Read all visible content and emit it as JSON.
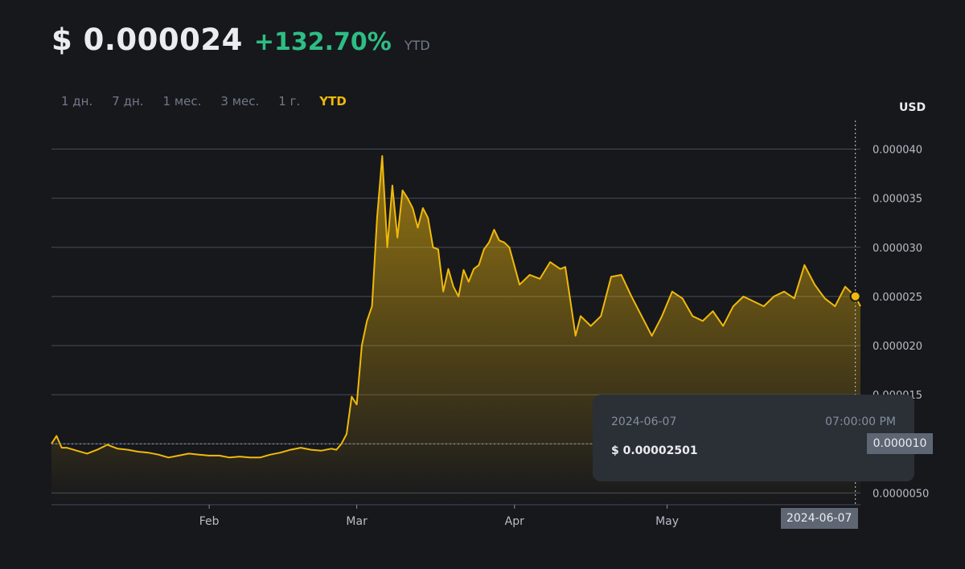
{
  "header": {
    "price": "$ 0.000024",
    "change": "+132.70%",
    "period": "YTD"
  },
  "tabs": [
    {
      "label": "1 дн.",
      "active": false
    },
    {
      "label": "7 дн.",
      "active": false
    },
    {
      "label": "1 мес.",
      "active": false
    },
    {
      "label": "3 мес.",
      "active": false
    },
    {
      "label": "1 г.",
      "active": false
    },
    {
      "label": "YTD",
      "active": true
    }
  ],
  "colors": {
    "accent": "#f0b90b",
    "positive": "#2ebd85",
    "background": "#17181c",
    "grid": "#474d57",
    "tooltip_bg": "#2b2f36"
  },
  "tooltip": {
    "date": "2024-06-07",
    "time": "07:00:00 PM",
    "price": "$ 0.00002501"
  },
  "crosshair": {
    "x_label": "2024-06-07",
    "y_label": "0.000010"
  },
  "chart_data": {
    "type": "area",
    "ylabel": "USD",
    "ylim": [
      3.8e-06,
      4.25e-05
    ],
    "yticks": [
      "0.000040",
      "0.000035",
      "0.000030",
      "0.000025",
      "0.000020",
      "0.000015",
      "0.000010",
      "0.0000050"
    ],
    "ytick_values": [
      4e-05,
      3.5e-05,
      3e-05,
      2.5e-05,
      2e-05,
      1.5e-05,
      1e-05,
      5e-06
    ],
    "xlim": [
      "2024-01-01",
      "2024-06-08"
    ],
    "xticks": [
      {
        "label": "Feb",
        "date": "2024-02-01"
      },
      {
        "label": "Mar",
        "date": "2024-03-01"
      },
      {
        "label": "Apr",
        "date": "2024-04-01"
      },
      {
        "label": "May",
        "date": "2024-05-01"
      }
    ],
    "baseline": 1e-05,
    "grid": true,
    "series": [
      {
        "points": [
          [
            "2024-01-01",
            1e-05
          ],
          [
            "2024-01-02",
            1.08e-05
          ],
          [
            "2024-01-03",
            9.6e-06
          ],
          [
            "2024-01-04",
            9.6e-06
          ],
          [
            "2024-01-06",
            9.3e-06
          ],
          [
            "2024-01-08",
            9e-06
          ],
          [
            "2024-01-10",
            9.4e-06
          ],
          [
            "2024-01-12",
            9.9e-06
          ],
          [
            "2024-01-14",
            9.5e-06
          ],
          [
            "2024-01-16",
            9.4e-06
          ],
          [
            "2024-01-18",
            9.2e-06
          ],
          [
            "2024-01-20",
            9.1e-06
          ],
          [
            "2024-01-22",
            8.9e-06
          ],
          [
            "2024-01-24",
            8.6e-06
          ],
          [
            "2024-01-26",
            8.8e-06
          ],
          [
            "2024-01-28",
            9e-06
          ],
          [
            "2024-01-30",
            8.9e-06
          ],
          [
            "2024-02-01",
            8.8e-06
          ],
          [
            "2024-02-03",
            8.8e-06
          ],
          [
            "2024-02-05",
            8.6e-06
          ],
          [
            "2024-02-07",
            8.7e-06
          ],
          [
            "2024-02-09",
            8.6e-06
          ],
          [
            "2024-02-11",
            8.6e-06
          ],
          [
            "2024-02-13",
            8.9e-06
          ],
          [
            "2024-02-15",
            9.1e-06
          ],
          [
            "2024-02-17",
            9.4e-06
          ],
          [
            "2024-02-19",
            9.6e-06
          ],
          [
            "2024-02-21",
            9.4e-06
          ],
          [
            "2024-02-23",
            9.3e-06
          ],
          [
            "2024-02-25",
            9.5e-06
          ],
          [
            "2024-02-26",
            9.4e-06
          ],
          [
            "2024-02-27",
            1e-05
          ],
          [
            "2024-02-28",
            1.1e-05
          ],
          [
            "2024-02-29",
            1.48e-05
          ],
          [
            "2024-03-01",
            1.4e-05
          ],
          [
            "2024-03-02",
            2e-05
          ],
          [
            "2024-03-03",
            2.25e-05
          ],
          [
            "2024-03-04",
            2.4e-05
          ],
          [
            "2024-03-05",
            3.3e-05
          ],
          [
            "2024-03-06",
            3.93e-05
          ],
          [
            "2024-03-07",
            3e-05
          ],
          [
            "2024-03-08",
            3.63e-05
          ],
          [
            "2024-03-09",
            3.1e-05
          ],
          [
            "2024-03-10",
            3.58e-05
          ],
          [
            "2024-03-11",
            3.5e-05
          ],
          [
            "2024-03-12",
            3.4e-05
          ],
          [
            "2024-03-13",
            3.2e-05
          ],
          [
            "2024-03-14",
            3.4e-05
          ],
          [
            "2024-03-15",
            3.3e-05
          ],
          [
            "2024-03-16",
            3e-05
          ],
          [
            "2024-03-17",
            2.98e-05
          ],
          [
            "2024-03-18",
            2.55e-05
          ],
          [
            "2024-03-19",
            2.78e-05
          ],
          [
            "2024-03-20",
            2.6e-05
          ],
          [
            "2024-03-21",
            2.5e-05
          ],
          [
            "2024-03-22",
            2.77e-05
          ],
          [
            "2024-03-23",
            2.65e-05
          ],
          [
            "2024-03-24",
            2.78e-05
          ],
          [
            "2024-03-25",
            2.82e-05
          ],
          [
            "2024-03-26",
            2.98e-05
          ],
          [
            "2024-03-27",
            3.05e-05
          ],
          [
            "2024-03-28",
            3.18e-05
          ],
          [
            "2024-03-29",
            3.07e-05
          ],
          [
            "2024-03-30",
            3.05e-05
          ],
          [
            "2024-03-31",
            3e-05
          ],
          [
            "2024-04-02",
            2.62e-05
          ],
          [
            "2024-04-04",
            2.72e-05
          ],
          [
            "2024-04-06",
            2.68e-05
          ],
          [
            "2024-04-08",
            2.85e-05
          ],
          [
            "2024-04-10",
            2.78e-05
          ],
          [
            "2024-04-11",
            2.8e-05
          ],
          [
            "2024-04-12",
            2.45e-05
          ],
          [
            "2024-04-13",
            2.1e-05
          ],
          [
            "2024-04-14",
            2.3e-05
          ],
          [
            "2024-04-16",
            2.2e-05
          ],
          [
            "2024-04-18",
            2.3e-05
          ],
          [
            "2024-04-19",
            2.5e-05
          ],
          [
            "2024-04-20",
            2.7e-05
          ],
          [
            "2024-04-22",
            2.72e-05
          ],
          [
            "2024-04-24",
            2.5e-05
          ],
          [
            "2024-04-26",
            2.3e-05
          ],
          [
            "2024-04-28",
            2.1e-05
          ],
          [
            "2024-04-30",
            2.3e-05
          ],
          [
            "2024-05-02",
            2.55e-05
          ],
          [
            "2024-05-04",
            2.48e-05
          ],
          [
            "2024-05-06",
            2.3e-05
          ],
          [
            "2024-05-08",
            2.25e-05
          ],
          [
            "2024-05-10",
            2.35e-05
          ],
          [
            "2024-05-12",
            2.2e-05
          ],
          [
            "2024-05-14",
            2.4e-05
          ],
          [
            "2024-05-16",
            2.5e-05
          ],
          [
            "2024-05-18",
            2.45e-05
          ],
          [
            "2024-05-20",
            2.4e-05
          ],
          [
            "2024-05-22",
            2.5e-05
          ],
          [
            "2024-05-24",
            2.55e-05
          ],
          [
            "2024-05-26",
            2.48e-05
          ],
          [
            "2024-05-28",
            2.82e-05
          ],
          [
            "2024-05-30",
            2.62e-05
          ],
          [
            "2024-06-01",
            2.48e-05
          ],
          [
            "2024-06-03",
            2.4e-05
          ],
          [
            "2024-06-05",
            2.6e-05
          ],
          [
            "2024-06-06",
            2.55e-05
          ],
          [
            "2024-06-07",
            2.5e-05
          ],
          [
            "2024-06-08",
            2.4e-05
          ]
        ]
      }
    ],
    "marker": {
      "date": "2024-06-07",
      "value": 2.501e-05
    }
  }
}
